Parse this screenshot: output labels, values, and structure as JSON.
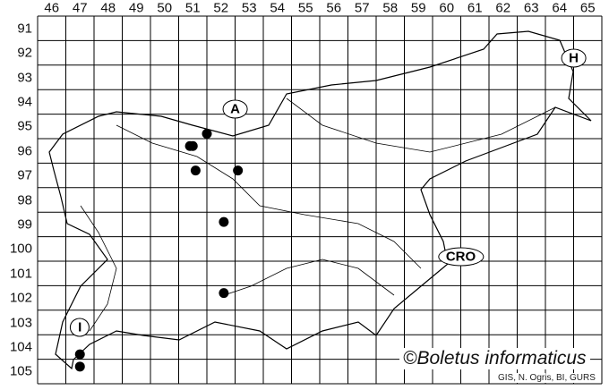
{
  "columns": [
    "46",
    "47",
    "48",
    "49",
    "50",
    "51",
    "52",
    "53",
    "54",
    "55",
    "56",
    "57",
    "58",
    "59",
    "60",
    "61",
    "62",
    "63",
    "64",
    "65"
  ],
  "rows": [
    "91",
    "92",
    "93",
    "94",
    "95",
    "96",
    "97",
    "98",
    "99",
    "100",
    "101",
    "102",
    "103",
    "104",
    "105"
  ],
  "country_labels": [
    {
      "label": "A",
      "col": 52.5,
      "row": 94.3
    },
    {
      "label": "H",
      "col": 64.5,
      "row": 92.2
    },
    {
      "label": "CRO",
      "col": 60.5,
      "row": 100.3
    },
    {
      "label": "I",
      "col": 47,
      "row": 103.2
    }
  ],
  "occurrences": [
    {
      "col": 50.9,
      "row": 95.8
    },
    {
      "col": 51.5,
      "row": 95.3
    },
    {
      "col": 51.0,
      "row": 95.8
    },
    {
      "col": 51.1,
      "row": 96.8
    },
    {
      "col": 52.6,
      "row": 96.8
    },
    {
      "col": 52.1,
      "row": 98.9
    },
    {
      "col": 52.1,
      "row": 101.8
    },
    {
      "col": 47.0,
      "row": 104.3
    },
    {
      "col": 47.0,
      "row": 104.8
    }
  ],
  "credit": "©Boletus informaticus",
  "source": "GIS, N. Ogris, BI, GURS",
  "colors": {
    "grid": "#000000",
    "border": "#000000",
    "dot": "#000000"
  }
}
